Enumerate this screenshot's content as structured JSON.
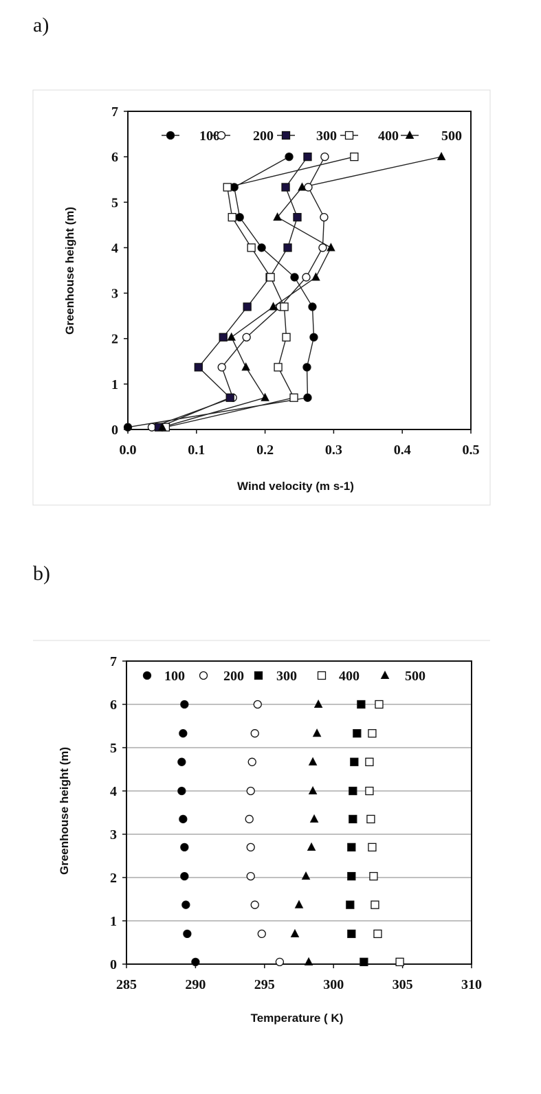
{
  "panels": [
    {
      "label": "a)"
    },
    {
      "label": "b)"
    }
  ],
  "chart_data": [
    {
      "type": "line",
      "xlabel": "Wind velocity (m s-1)",
      "ylabel": "Greenhouse height (m)",
      "xlim": [
        0,
        0.5
      ],
      "ylim": [
        0,
        7
      ],
      "xticks": [
        "0.0",
        "0.1",
        "0.2",
        "0.3",
        "0.4",
        "0.5"
      ],
      "yticks": [
        "0",
        "1",
        "2",
        "3",
        "4",
        "5",
        "6",
        "7"
      ],
      "grid": false,
      "legend_position": "top",
      "series": [
        {
          "name": "100",
          "marker": "circle-filled",
          "points": [
            [
              0.0,
              0.05
            ],
            [
              0.262,
              0.7
            ],
            [
              0.261,
              1.37
            ],
            [
              0.271,
              2.03
            ],
            [
              0.269,
              2.7
            ],
            [
              0.243,
              3.35
            ],
            [
              0.195,
              4.0
            ],
            [
              0.163,
              4.67
            ],
            [
              0.155,
              5.33
            ],
            [
              0.235,
              6.0
            ]
          ]
        },
        {
          "name": "200",
          "marker": "circle-open",
          "points": [
            [
              0.035,
              0.05
            ],
            [
              0.153,
              0.7
            ],
            [
              0.137,
              1.37
            ],
            [
              0.173,
              2.03
            ],
            [
              0.222,
              2.7
            ],
            [
              0.26,
              3.35
            ],
            [
              0.284,
              4.0
            ],
            [
              0.286,
              4.67
            ],
            [
              0.263,
              5.33
            ],
            [
              0.287,
              6.0
            ]
          ]
        },
        {
          "name": "300",
          "marker": "square-filled",
          "points": [
            [
              0.045,
              0.05
            ],
            [
              0.149,
              0.7
            ],
            [
              0.103,
              1.37
            ],
            [
              0.139,
              2.03
            ],
            [
              0.174,
              2.7
            ],
            [
              0.207,
              3.35
            ],
            [
              0.233,
              4.0
            ],
            [
              0.247,
              4.67
            ],
            [
              0.23,
              5.33
            ],
            [
              0.262,
              6.0
            ]
          ]
        },
        {
          "name": "400",
          "marker": "square-open",
          "points": [
            [
              0.055,
              0.05
            ],
            [
              0.242,
              0.7
            ],
            [
              0.219,
              1.37
            ],
            [
              0.231,
              2.03
            ],
            [
              0.228,
              2.7
            ],
            [
              0.208,
              3.35
            ],
            [
              0.18,
              4.0
            ],
            [
              0.152,
              4.67
            ],
            [
              0.145,
              5.33
            ],
            [
              0.33,
              6.0
            ]
          ]
        },
        {
          "name": "500",
          "marker": "triangle-filled",
          "points": [
            [
              0.05,
              0.05
            ],
            [
              0.2,
              0.7
            ],
            [
              0.172,
              1.37
            ],
            [
              0.151,
              2.03
            ],
            [
              0.212,
              2.7
            ],
            [
              0.274,
              3.35
            ],
            [
              0.296,
              4.0
            ],
            [
              0.218,
              4.67
            ],
            [
              0.254,
              5.33
            ],
            [
              0.457,
              6.0
            ]
          ]
        }
      ]
    },
    {
      "type": "scatter",
      "xlabel": "Temperature ( K)",
      "ylabel": "Greenhouse height (m)",
      "xlim": [
        285,
        310
      ],
      "ylim": [
        0,
        7
      ],
      "xticks": [
        "285",
        "290",
        "295",
        "300",
        "305",
        "310"
      ],
      "yticks": [
        "0",
        "1",
        "2",
        "3",
        "4",
        "5",
        "6",
        "7"
      ],
      "grid": true,
      "legend_position": "top",
      "series": [
        {
          "name": "100",
          "marker": "circle-filled",
          "points": [
            [
              290.0,
              0.05
            ],
            [
              289.4,
              0.7
            ],
            [
              289.3,
              1.37
            ],
            [
              289.2,
              2.03
            ],
            [
              289.2,
              2.7
            ],
            [
              289.1,
              3.35
            ],
            [
              289.0,
              4.0
            ],
            [
              289.0,
              4.67
            ],
            [
              289.1,
              5.33
            ],
            [
              289.2,
              6.0
            ]
          ]
        },
        {
          "name": "200",
          "marker": "circle-open",
          "points": [
            [
              296.1,
              0.05
            ],
            [
              294.8,
              0.7
            ],
            [
              294.3,
              1.37
            ],
            [
              294.0,
              2.03
            ],
            [
              294.0,
              2.7
            ],
            [
              293.9,
              3.35
            ],
            [
              294.0,
              4.0
            ],
            [
              294.1,
              4.67
            ],
            [
              294.3,
              5.33
            ],
            [
              294.5,
              6.0
            ]
          ]
        },
        {
          "name": "300",
          "marker": "square-filled",
          "points": [
            [
              302.2,
              0.05
            ],
            [
              301.3,
              0.7
            ],
            [
              301.2,
              1.37
            ],
            [
              301.3,
              2.03
            ],
            [
              301.3,
              2.7
            ],
            [
              301.4,
              3.35
            ],
            [
              301.4,
              4.0
            ],
            [
              301.5,
              4.67
            ],
            [
              301.7,
              5.33
            ],
            [
              302.0,
              6.0
            ]
          ]
        },
        {
          "name": "400",
          "marker": "square-open",
          "points": [
            [
              304.8,
              0.05
            ],
            [
              303.2,
              0.7
            ],
            [
              303.0,
              1.37
            ],
            [
              302.9,
              2.03
            ],
            [
              302.8,
              2.7
            ],
            [
              302.7,
              3.35
            ],
            [
              302.6,
              4.0
            ],
            [
              302.6,
              4.67
            ],
            [
              302.8,
              5.33
            ],
            [
              303.3,
              6.0
            ]
          ]
        },
        {
          "name": "500",
          "marker": "triangle-filled",
          "points": [
            [
              298.2,
              0.05
            ],
            [
              297.2,
              0.7
            ],
            [
              297.5,
              1.37
            ],
            [
              298.0,
              2.03
            ],
            [
              298.4,
              2.7
            ],
            [
              298.6,
              3.35
            ],
            [
              298.5,
              4.0
            ],
            [
              298.5,
              4.67
            ],
            [
              298.8,
              5.33
            ],
            [
              298.9,
              6.0
            ]
          ]
        }
      ]
    }
  ]
}
